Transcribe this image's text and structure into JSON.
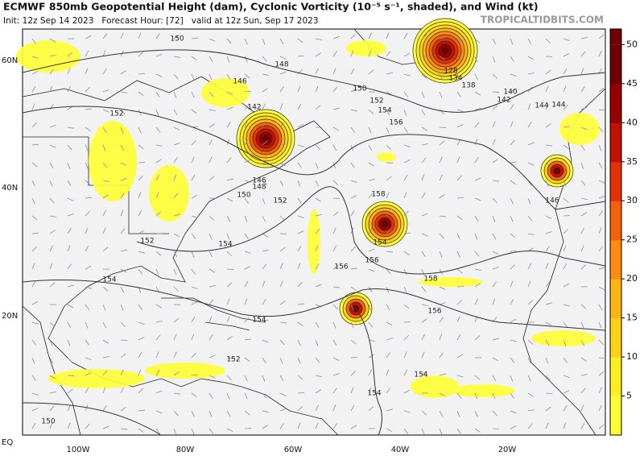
{
  "header": {
    "title": "ECMWF 850mb Geopotential Height (dam), Cyclonic Vorticity (10⁻⁵ s⁻¹, shaded), and Wind (kt)",
    "subtitle": "Init: 12z Sep 14 2023   Forecast Hour: [72]   valid at 12z Sun, Sep 17 2023",
    "watermark": "TROPICALTIDBITS.COM"
  },
  "lat_labels": [
    "60N",
    "40N",
    "20N",
    "EQ"
  ],
  "lon_labels": [
    "100W",
    "80W",
    "60W",
    "40W",
    "20W"
  ],
  "contour_labels": [
    150,
    148,
    146,
    142,
    150,
    152,
    154,
    156,
    152,
    146,
    148,
    150,
    152,
    152,
    154,
    158,
    154,
    156,
    156,
    158,
    156,
    154,
    154,
    152,
    154,
    154,
    150,
    128,
    134,
    138,
    140,
    142,
    144,
    144,
    146
  ],
  "colorbar": {
    "ticks": [
      5,
      10,
      15,
      20,
      25,
      30,
      35,
      40,
      45,
      50
    ],
    "colors": [
      "#ffff33",
      "#ffee22",
      "#ffd21a",
      "#ffb414",
      "#ff8c0f",
      "#f5600a",
      "#e03205",
      "#c01000",
      "#960000",
      "#6e0000"
    ]
  }
}
